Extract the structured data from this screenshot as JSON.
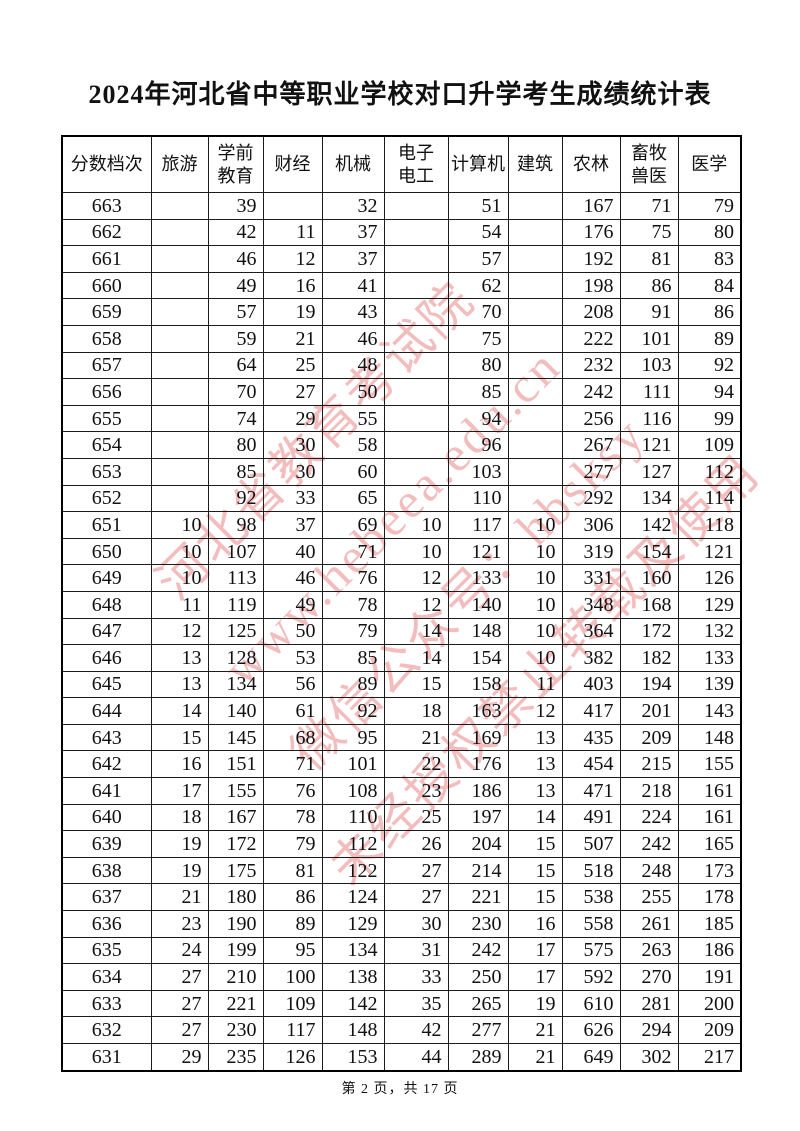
{
  "title": "2024年河北省中等职业学校对口升学考生成绩统计表",
  "watermark": {
    "color": "#e87e7e",
    "lines": [
      "河北省教育考试院",
      "www.hebeea.edu.cn",
      "微信公众号：hbsksy",
      "未经授权禁止转载及使用"
    ]
  },
  "table": {
    "headers": [
      "分数档次",
      "旅游",
      "学前\n教育",
      "财经",
      "机械",
      "电子\n电工",
      "计算机",
      "建筑",
      "农林",
      "畜牧\n兽医",
      "医学"
    ],
    "rows": [
      [
        "663",
        "",
        "39",
        "",
        "32",
        "",
        "51",
        "",
        "167",
        "71",
        "79"
      ],
      [
        "662",
        "",
        "42",
        "11",
        "37",
        "",
        "54",
        "",
        "176",
        "75",
        "80"
      ],
      [
        "661",
        "",
        "46",
        "12",
        "37",
        "",
        "57",
        "",
        "192",
        "81",
        "83"
      ],
      [
        "660",
        "",
        "49",
        "16",
        "41",
        "",
        "62",
        "",
        "198",
        "86",
        "84"
      ],
      [
        "659",
        "",
        "57",
        "19",
        "43",
        "",
        "70",
        "",
        "208",
        "91",
        "86"
      ],
      [
        "658",
        "",
        "59",
        "21",
        "46",
        "",
        "75",
        "",
        "222",
        "101",
        "89"
      ],
      [
        "657",
        "",
        "64",
        "25",
        "48",
        "",
        "80",
        "",
        "232",
        "103",
        "92"
      ],
      [
        "656",
        "",
        "70",
        "27",
        "50",
        "",
        "85",
        "",
        "242",
        "111",
        "94"
      ],
      [
        "655",
        "",
        "74",
        "29",
        "55",
        "",
        "94",
        "",
        "256",
        "116",
        "99"
      ],
      [
        "654",
        "",
        "80",
        "30",
        "58",
        "",
        "96",
        "",
        "267",
        "121",
        "109"
      ],
      [
        "653",
        "",
        "85",
        "30",
        "60",
        "",
        "103",
        "",
        "277",
        "127",
        "112"
      ],
      [
        "652",
        "",
        "92",
        "33",
        "65",
        "",
        "110",
        "",
        "292",
        "134",
        "114"
      ],
      [
        "651",
        "10",
        "98",
        "37",
        "69",
        "10",
        "117",
        "10",
        "306",
        "142",
        "118"
      ],
      [
        "650",
        "10",
        "107",
        "40",
        "71",
        "10",
        "121",
        "10",
        "319",
        "154",
        "121"
      ],
      [
        "649",
        "10",
        "113",
        "46",
        "76",
        "12",
        "133",
        "10",
        "331",
        "160",
        "126"
      ],
      [
        "648",
        "11",
        "119",
        "49",
        "78",
        "12",
        "140",
        "10",
        "348",
        "168",
        "129"
      ],
      [
        "647",
        "12",
        "125",
        "50",
        "79",
        "14",
        "148",
        "10",
        "364",
        "172",
        "132"
      ],
      [
        "646",
        "13",
        "128",
        "53",
        "85",
        "14",
        "154",
        "10",
        "382",
        "182",
        "133"
      ],
      [
        "645",
        "13",
        "134",
        "56",
        "89",
        "15",
        "158",
        "11",
        "403",
        "194",
        "139"
      ],
      [
        "644",
        "14",
        "140",
        "61",
        "92",
        "18",
        "163",
        "12",
        "417",
        "201",
        "143"
      ],
      [
        "643",
        "15",
        "145",
        "68",
        "95",
        "21",
        "169",
        "13",
        "435",
        "209",
        "148"
      ],
      [
        "642",
        "16",
        "151",
        "71",
        "101",
        "22",
        "176",
        "13",
        "454",
        "215",
        "155"
      ],
      [
        "641",
        "17",
        "155",
        "76",
        "108",
        "23",
        "186",
        "13",
        "471",
        "218",
        "161"
      ],
      [
        "640",
        "18",
        "167",
        "78",
        "110",
        "25",
        "197",
        "14",
        "491",
        "224",
        "161"
      ],
      [
        "639",
        "19",
        "172",
        "79",
        "112",
        "26",
        "204",
        "15",
        "507",
        "242",
        "165"
      ],
      [
        "638",
        "19",
        "175",
        "81",
        "122",
        "27",
        "214",
        "15",
        "518",
        "248",
        "173"
      ],
      [
        "637",
        "21",
        "180",
        "86",
        "124",
        "27",
        "221",
        "15",
        "538",
        "255",
        "178"
      ],
      [
        "636",
        "23",
        "190",
        "89",
        "129",
        "30",
        "230",
        "16",
        "558",
        "261",
        "185"
      ],
      [
        "635",
        "24",
        "199",
        "95",
        "134",
        "31",
        "242",
        "17",
        "575",
        "263",
        "186"
      ],
      [
        "634",
        "27",
        "210",
        "100",
        "138",
        "33",
        "250",
        "17",
        "592",
        "270",
        "191"
      ],
      [
        "633",
        "27",
        "221",
        "109",
        "142",
        "35",
        "265",
        "19",
        "610",
        "281",
        "200"
      ],
      [
        "632",
        "27",
        "230",
        "117",
        "148",
        "42",
        "277",
        "21",
        "626",
        "294",
        "209"
      ],
      [
        "631",
        "29",
        "235",
        "126",
        "153",
        "44",
        "289",
        "21",
        "649",
        "302",
        "217"
      ]
    ]
  },
  "footer": {
    "text": "第 2 页，共 17 页"
  }
}
